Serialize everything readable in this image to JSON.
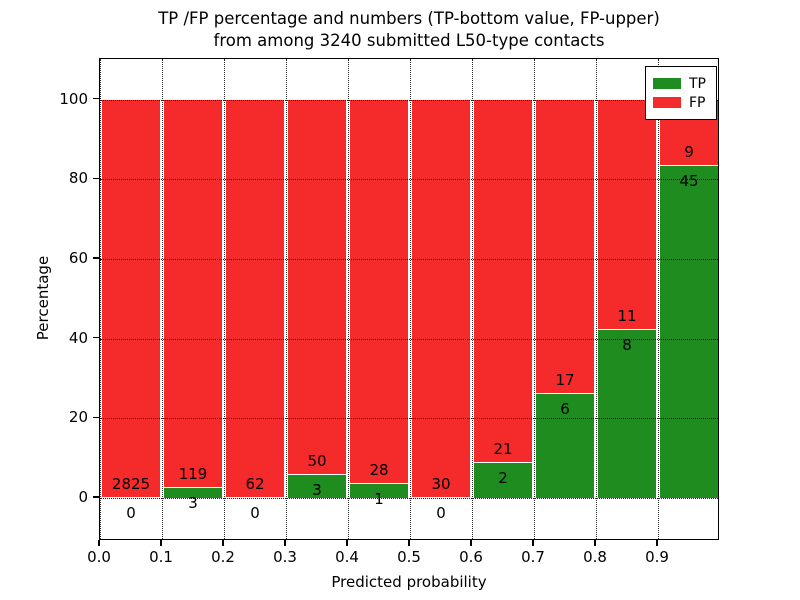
{
  "chart_data": {
    "type": "bar",
    "stacked": true,
    "title_lines": [
      "TP /FP percentage and numbers (TP-bottom value, FP-upper)",
      "from among 3240 submitted L50-type contacts"
    ],
    "xlabel": "Predicted probability",
    "ylabel": "Percentage",
    "xlim": [
      0.0,
      1.0
    ],
    "ylim": [
      -10.8,
      110.2
    ],
    "xticks": [
      "0.0",
      "0.1",
      "0.2",
      "0.3",
      "0.4",
      "0.5",
      "0.6",
      "0.7",
      "0.8",
      "0.9"
    ],
    "yticks": [
      0,
      20,
      40,
      60,
      80,
      100
    ],
    "grid": "dotted",
    "total_contacts": 3240,
    "categories": [
      0.0,
      0.1,
      0.2,
      0.3,
      0.4,
      0.5,
      0.6,
      0.7,
      0.8,
      0.9
    ],
    "series": [
      {
        "name": "TP",
        "color": "#1e8c1e",
        "counts": [
          0,
          3,
          0,
          3,
          1,
          0,
          2,
          6,
          8,
          45
        ]
      },
      {
        "name": "FP",
        "color": "#f52a2a",
        "counts": [
          2825,
          119,
          62,
          50,
          28,
          30,
          21,
          17,
          11,
          9
        ]
      }
    ],
    "legend": {
      "position": "upper right",
      "entries": [
        {
          "label": "TP",
          "color": "#1e8c1e"
        },
        {
          "label": "FP",
          "color": "#f52a2a"
        }
      ]
    }
  }
}
